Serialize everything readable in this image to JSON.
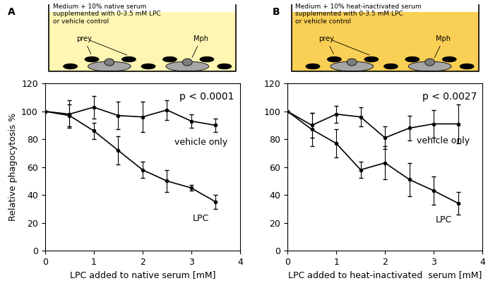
{
  "chart_data": [
    {
      "type": "line",
      "panel_label": "A",
      "subtitle": "Medium + 10% native serum\nsupplemented with 0-3.5 mM LPC\nor vehicle control",
      "annotations": {
        "p_value": "p < 0.0001",
        "prey": "prey",
        "cell": "Mph"
      },
      "x_label": "LPC added to native serum [mM]",
      "y_label": "Relative phagocytosis %",
      "x": [
        0,
        0.5,
        1,
        1.5,
        2,
        2.5,
        3,
        3.5
      ],
      "series": [
        {
          "name": "vehicle only",
          "color": "#000000",
          "marker": "o",
          "values": [
            100,
            98,
            103,
            97,
            96,
            101,
            93,
            90
          ],
          "errors": [
            0,
            10,
            8,
            10,
            11,
            7,
            5,
            5
          ]
        },
        {
          "name": "LPC",
          "color": "#000000",
          "marker": "o",
          "values": [
            100,
            97,
            86,
            72,
            58,
            50,
            45,
            35
          ],
          "errors": [
            0,
            8,
            6,
            10,
            6,
            8,
            2,
            5
          ]
        }
      ],
      "xlim": [
        0,
        4
      ],
      "xticks": [
        0,
        1,
        2,
        3,
        4
      ],
      "ylim": [
        0,
        120
      ],
      "yticks": [
        0,
        20,
        40,
        60,
        80,
        100,
        120
      ],
      "grid": false
    },
    {
      "type": "line",
      "panel_label": "B",
      "subtitle": "Medium + 10% heat-inactivated serum\nsupplemented with 0-3.5 mM LPC\nor vehicle control",
      "annotations": {
        "p_value": "p < 0.0027",
        "prey": "prey",
        "cell": "Mph"
      },
      "x_label": "LPC added to heat-inactivated  serum [mM]",
      "x": [
        0,
        0.5,
        1,
        1.5,
        2,
        2.5,
        3,
        3.5
      ],
      "series": [
        {
          "name": "vehicle only",
          "color": "#000000",
          "marker": "o",
          "values": [
            100,
            90,
            98,
            96,
            81,
            88,
            91,
            91
          ],
          "errors": [
            0,
            9,
            6,
            7,
            8,
            9,
            10,
            14
          ]
        },
        {
          "name": "LPC",
          "color": "#000000",
          "marker": "o",
          "values": [
            100,
            87,
            77,
            58,
            63,
            51,
            43,
            34
          ],
          "errors": [
            0,
            12,
            10,
            6,
            12,
            12,
            10,
            8
          ]
        }
      ],
      "xlim": [
        0,
        4
      ],
      "xticks": [
        0,
        1,
        2,
        3,
        4
      ],
      "ylim": [
        0,
        120
      ],
      "yticks": [
        0,
        20,
        40,
        60,
        80,
        100,
        120
      ],
      "grid": false
    }
  ]
}
